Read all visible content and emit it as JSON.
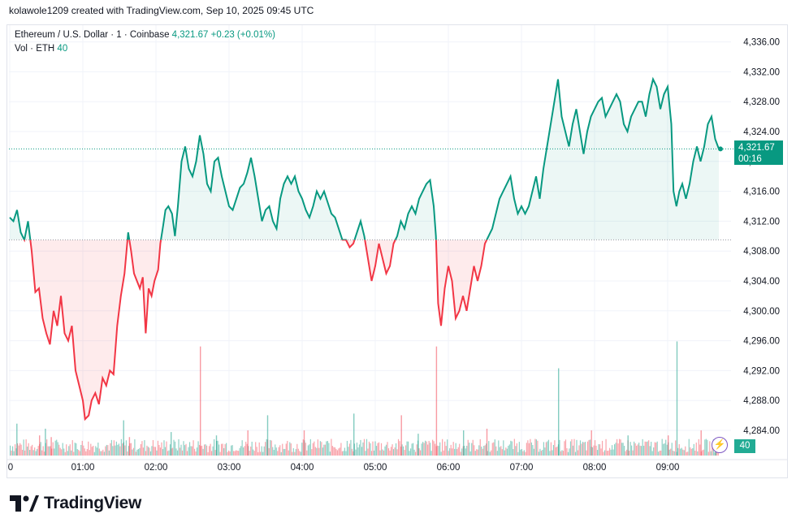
{
  "header": {
    "attribution": "kolawole1209 created with TradingView.com, Sep 10, 2025 09:45 UTC"
  },
  "legend": {
    "symbol": "Ethereum / U.S. Dollar · 1 · Coinbase",
    "last_price": "4,321.67",
    "change": "+0.23 (+0.01%)",
    "volume_label": "Vol · ETH",
    "volume_value": "40"
  },
  "price_tag": {
    "price": "4,321.67",
    "countdown": "00:16"
  },
  "volume_tag": "40",
  "brand": {
    "name": "TradingView"
  },
  "colors": {
    "up": "#089981",
    "down": "#f23645",
    "grid": "#f0f3fa",
    "axis_text": "#131722"
  },
  "chart_data": {
    "type": "line",
    "title": "Ethereum / U.S. Dollar · 1 · Coinbase",
    "xlabel": "",
    "ylabel": "",
    "baseline": 4309.5,
    "ylim": [
      4282,
      4338
    ],
    "xlim": [
      0,
      9.8
    ],
    "x_ticks": [
      0,
      1,
      2,
      3,
      4,
      5,
      6,
      7,
      8,
      9
    ],
    "x_tick_labels": [
      "0",
      "01:00",
      "02:00",
      "03:00",
      "04:00",
      "05:00",
      "06:00",
      "07:00",
      "08:00",
      "09:00"
    ],
    "y_ticks": [
      4284,
      4288,
      4292,
      4296,
      4300,
      4304,
      4308,
      4312,
      4316,
      4320,
      4324,
      4328,
      4332,
      4336
    ],
    "y_tick_labels": [
      "4,284.00",
      "4,288.00",
      "4,292.00",
      "4,296.00",
      "4,300.00",
      "4,304.00",
      "4,308.00",
      "4,312.00",
      "4,316.00",
      "4,320.00",
      "4,324.00",
      "4,328.00",
      "4,332.00",
      "4,336.00"
    ],
    "grid": true,
    "series": [
      {
        "points": [
          [
            0.0,
            4312.5
          ],
          [
            0.05,
            4312
          ],
          [
            0.1,
            4313.5
          ],
          [
            0.15,
            4310.5
          ],
          [
            0.2,
            4309.5
          ],
          [
            0.25,
            4312
          ],
          [
            0.3,
            4308
          ],
          [
            0.35,
            4302.5
          ],
          [
            0.4,
            4303
          ],
          [
            0.45,
            4299
          ],
          [
            0.5,
            4297
          ],
          [
            0.55,
            4295.5
          ],
          [
            0.6,
            4300
          ],
          [
            0.65,
            4298
          ],
          [
            0.7,
            4302
          ],
          [
            0.75,
            4297
          ],
          [
            0.8,
            4296
          ],
          [
            0.85,
            4298
          ],
          [
            0.9,
            4292
          ],
          [
            0.95,
            4290
          ],
          [
            1.0,
            4288
          ],
          [
            1.03,
            4285.5
          ],
          [
            1.08,
            4286
          ],
          [
            1.12,
            4288
          ],
          [
            1.17,
            4289
          ],
          [
            1.22,
            4287.5
          ],
          [
            1.27,
            4291
          ],
          [
            1.32,
            4290
          ],
          [
            1.37,
            4292
          ],
          [
            1.42,
            4291.5
          ],
          [
            1.47,
            4298
          ],
          [
            1.52,
            4302
          ],
          [
            1.57,
            4305
          ],
          [
            1.62,
            4310.5
          ],
          [
            1.66,
            4308
          ],
          [
            1.7,
            4305
          ],
          [
            1.74,
            4304
          ],
          [
            1.78,
            4303
          ],
          [
            1.82,
            4304.5
          ],
          [
            1.86,
            4297
          ],
          [
            1.9,
            4303
          ],
          [
            1.94,
            4302
          ],
          [
            1.98,
            4304
          ],
          [
            2.03,
            4305.5
          ],
          [
            2.06,
            4309
          ],
          [
            2.1,
            4311.5
          ],
          [
            2.13,
            4313.5
          ],
          [
            2.17,
            4314
          ],
          [
            2.22,
            4313
          ],
          [
            2.26,
            4310
          ],
          [
            2.3,
            4314
          ],
          [
            2.35,
            4320
          ],
          [
            2.4,
            4322
          ],
          [
            2.45,
            4319
          ],
          [
            2.5,
            4318
          ],
          [
            2.55,
            4320
          ],
          [
            2.6,
            4323.5
          ],
          [
            2.65,
            4321
          ],
          [
            2.7,
            4317
          ],
          [
            2.75,
            4316
          ],
          [
            2.8,
            4320
          ],
          [
            2.85,
            4320.5
          ],
          [
            2.9,
            4318
          ],
          [
            2.95,
            4316
          ],
          [
            3.0,
            4314
          ],
          [
            3.05,
            4313.5
          ],
          [
            3.1,
            4315
          ],
          [
            3.15,
            4316.5
          ],
          [
            3.2,
            4317
          ],
          [
            3.25,
            4318.5
          ],
          [
            3.3,
            4320.5
          ],
          [
            3.35,
            4318
          ],
          [
            3.4,
            4315
          ],
          [
            3.45,
            4312
          ],
          [
            3.5,
            4313.5
          ],
          [
            3.55,
            4314
          ],
          [
            3.6,
            4312
          ],
          [
            3.65,
            4311
          ],
          [
            3.7,
            4315
          ],
          [
            3.75,
            4317
          ],
          [
            3.8,
            4318
          ],
          [
            3.85,
            4317
          ],
          [
            3.9,
            4318
          ],
          [
            3.95,
            4316
          ],
          [
            4.0,
            4315
          ],
          [
            4.05,
            4313.5
          ],
          [
            4.1,
            4312.5
          ],
          [
            4.15,
            4314
          ],
          [
            4.2,
            4316
          ],
          [
            4.25,
            4315
          ],
          [
            4.3,
            4316
          ],
          [
            4.35,
            4314.5
          ],
          [
            4.4,
            4313
          ],
          [
            4.45,
            4312.5
          ],
          [
            4.5,
            4311
          ],
          [
            4.55,
            4309.5
          ],
          [
            4.6,
            4309.5
          ],
          [
            4.65,
            4308.5
          ],
          [
            4.7,
            4309
          ],
          [
            4.75,
            4310.5
          ],
          [
            4.8,
            4312
          ],
          [
            4.85,
            4310
          ],
          [
            4.9,
            4307
          ],
          [
            4.95,
            4304
          ],
          [
            5.0,
            4306
          ],
          [
            5.05,
            4309
          ],
          [
            5.1,
            4307
          ],
          [
            5.15,
            4305
          ],
          [
            5.2,
            4306
          ],
          [
            5.25,
            4309
          ],
          [
            5.3,
            4310
          ],
          [
            5.35,
            4312
          ],
          [
            5.4,
            4311
          ],
          [
            5.45,
            4313
          ],
          [
            5.5,
            4314
          ],
          [
            5.55,
            4313
          ],
          [
            5.6,
            4315
          ],
          [
            5.65,
            4316
          ],
          [
            5.7,
            4317
          ],
          [
            5.75,
            4317.5
          ],
          [
            5.8,
            4314
          ],
          [
            5.83,
            4310
          ],
          [
            5.86,
            4301
          ],
          [
            5.9,
            4298
          ],
          [
            5.95,
            4303
          ],
          [
            6.0,
            4306
          ],
          [
            6.05,
            4304
          ],
          [
            6.1,
            4299
          ],
          [
            6.15,
            4300
          ],
          [
            6.2,
            4302
          ],
          [
            6.25,
            4300
          ],
          [
            6.3,
            4303
          ],
          [
            6.35,
            4306
          ],
          [
            6.4,
            4304
          ],
          [
            6.45,
            4306
          ],
          [
            6.5,
            4309
          ],
          [
            6.55,
            4310
          ],
          [
            6.6,
            4311
          ],
          [
            6.65,
            4313
          ],
          [
            6.7,
            4315
          ],
          [
            6.75,
            4316
          ],
          [
            6.8,
            4317
          ],
          [
            6.85,
            4318
          ],
          [
            6.9,
            4315
          ],
          [
            6.95,
            4313
          ],
          [
            7.0,
            4314
          ],
          [
            7.05,
            4313
          ],
          [
            7.1,
            4314
          ],
          [
            7.15,
            4316
          ],
          [
            7.2,
            4318
          ],
          [
            7.25,
            4315
          ],
          [
            7.3,
            4319
          ],
          [
            7.35,
            4322
          ],
          [
            7.4,
            4325
          ],
          [
            7.45,
            4328
          ],
          [
            7.5,
            4331
          ],
          [
            7.55,
            4326
          ],
          [
            7.6,
            4324
          ],
          [
            7.65,
            4322
          ],
          [
            7.7,
            4325
          ],
          [
            7.75,
            4327
          ],
          [
            7.8,
            4324
          ],
          [
            7.85,
            4321
          ],
          [
            7.9,
            4324
          ],
          [
            7.95,
            4326
          ],
          [
            8.0,
            4327
          ],
          [
            8.05,
            4328
          ],
          [
            8.1,
            4328.5
          ],
          [
            8.15,
            4326
          ],
          [
            8.2,
            4327
          ],
          [
            8.25,
            4328
          ],
          [
            8.3,
            4329
          ],
          [
            8.35,
            4328
          ],
          [
            8.4,
            4325
          ],
          [
            8.45,
            4324
          ],
          [
            8.5,
            4326
          ],
          [
            8.55,
            4327
          ],
          [
            8.6,
            4328
          ],
          [
            8.65,
            4328
          ],
          [
            8.7,
            4326
          ],
          [
            8.75,
            4329
          ],
          [
            8.8,
            4331
          ],
          [
            8.85,
            4330
          ],
          [
            8.9,
            4327
          ],
          [
            8.95,
            4329
          ],
          [
            9.0,
            4330
          ],
          [
            9.05,
            4325
          ],
          [
            9.08,
            4316
          ],
          [
            9.12,
            4314
          ],
          [
            9.16,
            4316
          ],
          [
            9.2,
            4317
          ],
          [
            9.25,
            4315
          ],
          [
            9.3,
            4317
          ],
          [
            9.35,
            4320
          ],
          [
            9.4,
            4322
          ],
          [
            9.45,
            4320
          ],
          [
            9.5,
            4322
          ],
          [
            9.55,
            4325
          ],
          [
            9.6,
            4326
          ],
          [
            9.65,
            4323
          ],
          [
            9.7,
            4321.67
          ]
        ]
      }
    ],
    "volume": {
      "ylim": [
        0,
        150
      ],
      "bars": [
        [
          0.09,
          38
        ],
        [
          0.4,
          24
        ],
        [
          0.48,
          32
        ],
        [
          0.56,
          22
        ],
        [
          1.55,
          42
        ],
        [
          1.63,
          22
        ],
        [
          2.2,
          28
        ],
        [
          2.6,
          130
        ],
        [
          2.82,
          24
        ],
        [
          3.25,
          30
        ],
        [
          3.52,
          48
        ],
        [
          4.02,
          30
        ],
        [
          4.7,
          50
        ],
        [
          5.35,
          48
        ],
        [
          5.58,
          26
        ],
        [
          5.83,
          130
        ],
        [
          6.2,
          30
        ],
        [
          6.52,
          32
        ],
        [
          7.5,
          104
        ],
        [
          7.95,
          30
        ],
        [
          8.45,
          24
        ],
        [
          9.0,
          24
        ],
        [
          9.12,
          136
        ],
        [
          9.45,
          30
        ],
        [
          9.65,
          14
        ]
      ]
    }
  }
}
